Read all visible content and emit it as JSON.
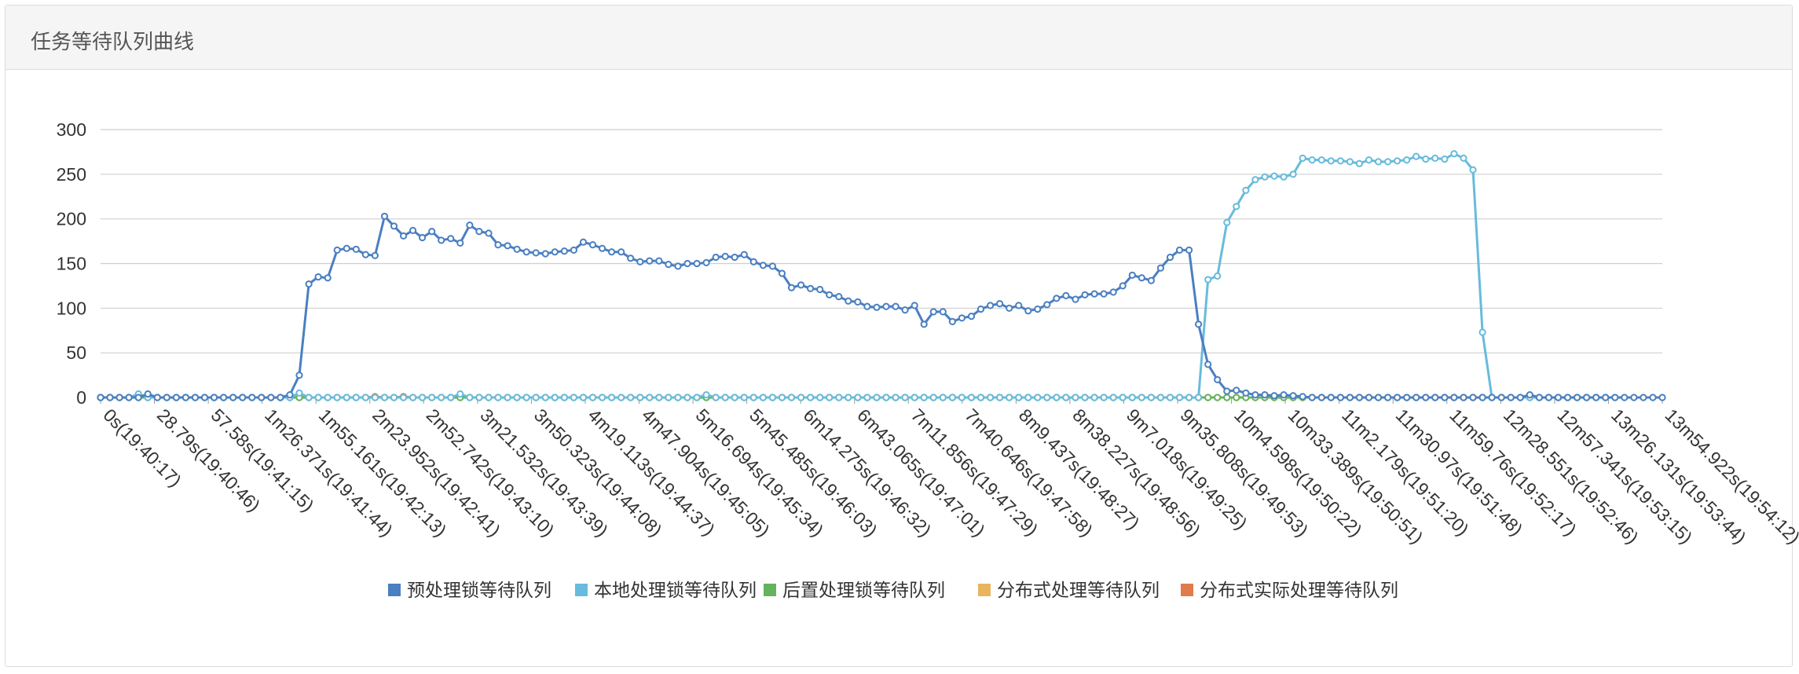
{
  "panel": {
    "title": "任务等待队列曲线"
  },
  "chart_data": {
    "type": "line",
    "title": "",
    "xlabel": "",
    "ylabel": "",
    "ylim": [
      0,
      300
    ],
    "yticks": [
      0,
      50,
      100,
      150,
      200,
      250,
      300
    ],
    "grid": true,
    "legend_position": "bottom",
    "x_tick_labels": [
      "0s(19:40:17)",
      "28.79s(19:40:46)",
      "57.58s(19:41:15)",
      "1m26.371s(19:41:44)",
      "1m55.161s(19:42:13)",
      "2m23.952s(19:42:41)",
      "2m52.742s(19:43:10)",
      "3m21.532s(19:43:39)",
      "3m50.323s(19:44:08)",
      "4m19.113s(19:44:37)",
      "4m47.904s(19:45:05)",
      "5m16.694s(19:45:34)",
      "5m45.485s(19:46:03)",
      "6m14.275s(19:46:32)",
      "6m43.065s(19:47:01)",
      "7m11.856s(19:47:29)",
      "7m40.646s(19:47:58)",
      "8m9.437s(19:48:27)",
      "8m38.227s(19:48:56)",
      "9m7.018s(19:49:25)",
      "9m35.808s(19:49:53)",
      "10m4.598s(19:50:22)",
      "10m33.389s(19:50:51)",
      "11m2.179s(19:51:20)",
      "11m30.97s(19:51:48)",
      "11m59.76s(19:52:17)",
      "12m28.551s(19:52:46)",
      "12m57.341s(19:53:15)",
      "13m26.131s(19:53:44)",
      "13m54.922s(19:54:12)"
    ],
    "series": [
      {
        "name": "预处理锁等待队列",
        "color": "#4a7fc1",
        "values": [
          0,
          0,
          0,
          0,
          0,
          4,
          0,
          0,
          0,
          0,
          0,
          0,
          0,
          0,
          0,
          0,
          0,
          0,
          0,
          0,
          3,
          25,
          127,
          135,
          134,
          165,
          167,
          166,
          160,
          159,
          203,
          192,
          181,
          187,
          179,
          186,
          176,
          178,
          173,
          193,
          186,
          184,
          171,
          170,
          166,
          163,
          162,
          161,
          163,
          164,
          165,
          174,
          171,
          167,
          163,
          163,
          156,
          152,
          153,
          153,
          149,
          147,
          150,
          150,
          151,
          157,
          158,
          157,
          160,
          152,
          148,
          147,
          139,
          123,
          126,
          122,
          121,
          115,
          113,
          108,
          107,
          102,
          101,
          102,
          102,
          98,
          103,
          82,
          96,
          96,
          85,
          89,
          91,
          99,
          103,
          105,
          100,
          103,
          97,
          99,
          104,
          111,
          114,
          110,
          115,
          116,
          116,
          118,
          125,
          137,
          134,
          131,
          145,
          157,
          165,
          165,
          82,
          37,
          20,
          7,
          8,
          5,
          3,
          3,
          2,
          3,
          2,
          1,
          0,
          0,
          0,
          0,
          0,
          0,
          0,
          0,
          0,
          0,
          0,
          0,
          0,
          0,
          0,
          0,
          0,
          0,
          0,
          0,
          0,
          0,
          0,
          3,
          0,
          0,
          0,
          0,
          0,
          0,
          0,
          0,
          0,
          0,
          0,
          0,
          0,
          0
        ]
      },
      {
        "name": "本地处理锁等待队列",
        "color": "#67bbdc",
        "values": [
          0,
          0,
          0,
          0,
          4,
          0,
          0,
          0,
          0,
          0,
          0,
          0,
          0,
          0,
          0,
          0,
          0,
          0,
          0,
          0,
          0,
          5,
          0,
          0,
          0,
          0,
          0,
          0,
          0,
          0,
          0,
          0,
          0,
          0,
          0,
          0,
          0,
          0,
          4,
          0,
          0,
          0,
          0,
          0,
          0,
          0,
          0,
          0,
          0,
          0,
          0,
          0,
          0,
          0,
          0,
          0,
          0,
          0,
          0,
          0,
          0,
          0,
          0,
          0,
          3,
          0,
          0,
          0,
          0,
          0,
          0,
          0,
          0,
          0,
          0,
          0,
          0,
          0,
          0,
          0,
          0,
          0,
          0,
          0,
          0,
          0,
          0,
          0,
          0,
          0,
          0,
          0,
          0,
          0,
          0,
          0,
          0,
          0,
          0,
          0,
          0,
          0,
          0,
          0,
          0,
          0,
          0,
          0,
          0,
          0,
          0,
          0,
          0,
          0,
          0,
          0,
          0,
          132,
          136,
          196,
          214,
          232,
          244,
          247,
          248,
          247,
          250,
          268,
          266,
          266,
          265,
          265,
          264,
          262,
          266,
          264,
          264,
          265,
          266,
          270,
          267,
          268,
          267,
          273,
          268,
          255,
          73,
          0,
          0,
          0,
          0,
          0,
          0,
          0,
          0,
          0,
          0,
          0,
          0,
          0,
          0
        ]
      },
      {
        "name": "后置处理锁等待队列",
        "color": "#64b35e",
        "values": [
          0,
          0,
          0,
          0,
          0,
          0,
          0,
          0,
          0,
          0,
          0,
          0,
          0,
          0,
          0,
          0,
          0,
          0,
          0,
          0,
          0,
          0,
          0,
          0,
          0,
          0,
          0,
          0,
          0,
          0,
          0,
          0,
          0,
          0,
          0,
          0,
          0,
          0,
          0,
          0,
          0,
          0,
          0,
          0,
          0,
          0,
          0,
          0,
          0,
          0,
          0,
          0,
          0,
          0,
          0,
          0,
          0,
          0,
          0,
          0,
          0,
          0,
          0,
          0,
          0,
          0,
          0,
          0,
          0,
          0,
          0,
          0,
          0,
          0,
          0,
          0,
          0,
          0,
          0,
          0,
          0,
          0,
          0,
          0,
          0,
          0,
          0,
          0,
          0,
          0,
          0,
          0,
          0,
          0,
          0,
          0,
          0,
          0,
          0,
          0,
          0,
          0,
          0,
          0,
          0,
          0,
          0,
          0,
          0,
          0,
          0,
          0,
          0,
          0,
          0,
          0,
          0,
          0,
          0,
          0,
          0,
          0,
          0,
          0,
          0,
          0,
          0,
          0,
          0,
          0,
          0,
          0,
          0,
          0,
          0,
          0,
          0,
          0,
          0,
          0,
          0,
          0,
          0,
          0,
          0,
          0,
          0,
          0,
          0,
          0,
          0,
          0,
          0,
          0,
          0,
          0,
          0,
          0,
          0,
          0
        ]
      },
      {
        "name": "分布式处理等待队列",
        "color": "#e9b45e",
        "values": [
          0,
          0,
          0,
          0,
          0,
          0,
          0,
          0,
          0,
          0,
          0,
          0,
          0,
          0,
          0,
          0,
          0,
          0,
          0,
          0,
          0,
          0,
          0,
          0,
          0,
          0,
          0,
          0,
          0,
          0,
          0,
          0,
          0,
          0,
          0,
          0,
          0,
          0,
          0,
          0,
          0,
          0,
          0,
          0,
          0,
          0,
          0,
          0,
          0,
          0,
          0,
          0,
          0,
          0,
          0,
          0,
          0,
          0,
          0,
          0,
          0,
          0,
          0,
          0,
          0,
          0,
          0,
          0,
          0,
          0,
          0,
          0,
          0,
          0,
          0,
          0,
          0,
          0,
          0,
          0,
          0,
          0,
          0,
          0,
          0,
          0,
          0,
          0,
          0,
          0,
          0,
          0,
          0,
          0,
          0,
          0,
          0,
          0,
          0,
          0,
          0,
          0,
          0,
          0,
          0,
          0,
          0,
          0,
          0,
          0,
          0,
          0,
          0,
          0,
          0,
          0,
          0,
          0,
          0,
          0,
          0,
          0,
          0,
          0,
          0,
          0,
          0,
          0,
          0,
          0,
          0,
          0,
          0,
          0,
          0,
          0,
          0,
          0,
          0,
          0,
          0,
          0,
          0,
          0,
          0,
          0,
          0,
          0,
          0,
          0,
          0,
          0,
          0,
          0,
          0,
          0,
          0,
          0,
          0,
          0
        ]
      },
      {
        "name": "分布式实际处理等待队列",
        "color": "#e07b4b",
        "values": [
          0,
          0,
          0,
          0,
          0,
          0,
          0,
          0,
          0,
          0,
          0,
          0,
          0,
          0,
          0,
          0,
          0,
          0,
          0,
          0,
          0,
          0,
          0,
          0,
          0,
          0,
          0,
          0,
          0,
          1,
          0,
          0,
          1,
          0,
          0,
          0,
          0,
          0,
          0,
          0,
          0,
          0,
          0,
          0,
          0,
          0,
          0,
          0,
          0,
          0,
          0,
          0,
          0,
          0,
          0,
          0,
          0,
          0,
          0,
          0,
          0,
          0,
          0,
          0,
          0,
          0,
          0,
          0,
          0,
          0,
          0,
          0,
          0,
          0,
          0,
          0,
          0,
          0,
          0,
          0,
          0,
          0,
          0,
          0,
          0,
          0,
          0,
          0,
          0,
          0,
          0,
          0,
          0,
          0,
          0,
          0,
          0,
          0,
          0,
          0,
          0,
          0,
          0,
          0,
          0,
          0,
          0,
          0,
          0,
          0,
          0,
          0,
          0,
          0,
          0,
          0,
          0,
          0,
          0,
          0,
          0,
          0,
          0,
          0,
          0,
          0,
          0,
          0,
          0,
          0,
          0,
          0,
          0,
          0,
          0,
          0,
          0,
          0,
          0,
          0,
          0,
          0,
          0,
          0,
          0,
          0,
          0,
          0,
          0,
          0,
          0,
          0,
          0,
          0,
          0,
          0,
          0,
          0,
          0,
          0
        ]
      }
    ]
  }
}
